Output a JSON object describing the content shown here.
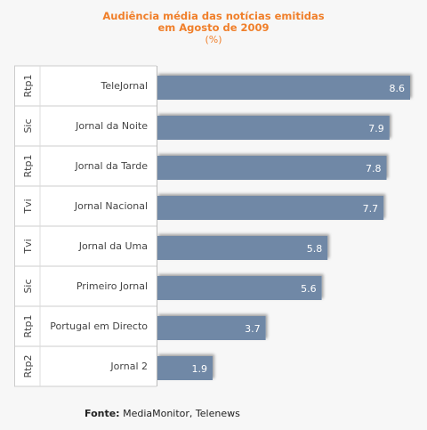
{
  "chart_data": {
    "type": "bar",
    "orientation": "horizontal",
    "title_line1": "Audiência média das notícias emitidas",
    "title_line2": "em Agosto de 2009",
    "unit": "(%)",
    "rows": [
      {
        "channel": "Rtp1",
        "program": "TeleJornal",
        "value": 8.6
      },
      {
        "channel": "Sic",
        "program": "Jornal da Noite",
        "value": 7.9
      },
      {
        "channel": "Rtp1",
        "program": "Jornal da Tarde",
        "value": 7.8
      },
      {
        "channel": "Tvi",
        "program": "Jornal Nacional",
        "value": 7.7
      },
      {
        "channel": "Tvi",
        "program": "Jornal da Uma",
        "value": 5.8
      },
      {
        "channel": "Sic",
        "program": "Primeiro Jornal",
        "value": 5.6
      },
      {
        "channel": "Rtp1",
        "program": "Portugal em Directo",
        "value": 3.7
      },
      {
        "channel": "Rtp2",
        "program": "Jornal 2",
        "value": 1.9
      }
    ],
    "xlim": [
      0,
      8.6
    ],
    "bar_color": "#6f88a6",
    "label_color": "#ffffff"
  },
  "footer": {
    "label": "Fonte:",
    "text": " MediaMonitor, Telenews"
  }
}
